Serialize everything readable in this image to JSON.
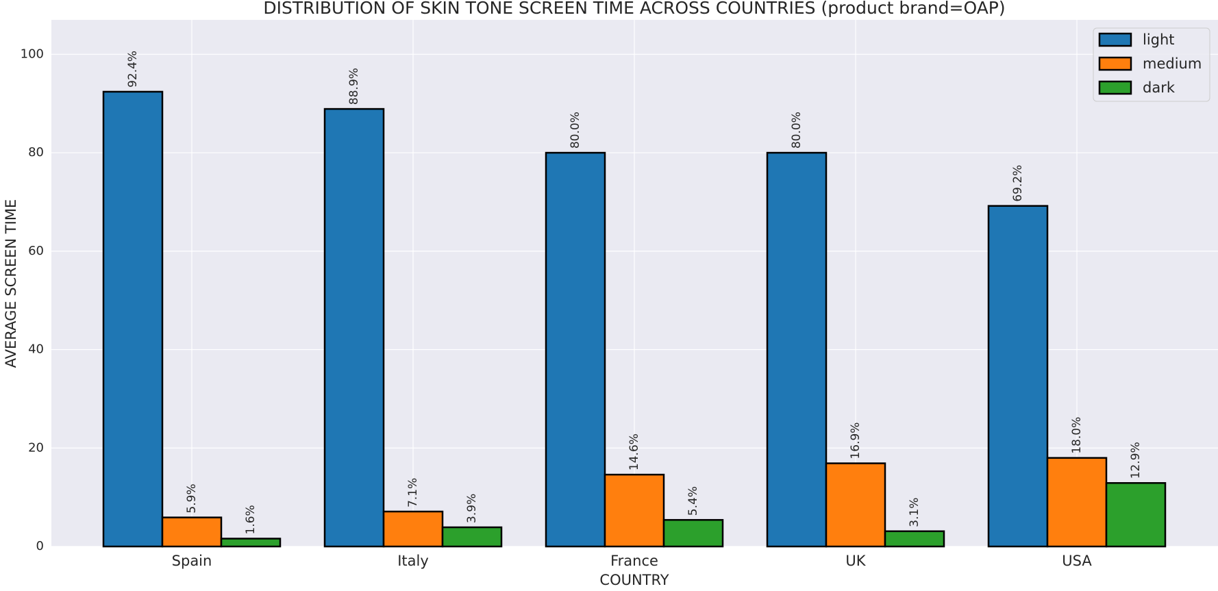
{
  "chart_data": {
    "type": "bar",
    "title": "DISTRIBUTION OF SKIN TONE SCREEN TIME ACROSS COUNTRIES (product brand=OAP)",
    "xlabel": "COUNTRY",
    "ylabel": "AVERAGE SCREEN TIME",
    "categories": [
      "Spain",
      "Italy",
      "France",
      "UK",
      "USA"
    ],
    "ylim": [
      0,
      107
    ],
    "yticks": [
      0,
      20,
      40,
      60,
      80,
      100
    ],
    "grid": true,
    "legend_position": "top-right",
    "colors": {
      "background": "#eaeaf2",
      "grid": "#ffffff",
      "edge": "#000000"
    },
    "series": [
      {
        "name": "light",
        "color": "#1f77b4",
        "values": [
          92.4,
          88.9,
          80.0,
          80.0,
          69.2
        ],
        "labels": [
          "92.4%",
          "88.9%",
          "80.0%",
          "80.0%",
          "69.2%"
        ]
      },
      {
        "name": "medium",
        "color": "#ff7f0e",
        "values": [
          5.9,
          7.1,
          14.6,
          16.9,
          18.0
        ],
        "labels": [
          "5.9%",
          "7.1%",
          "14.6%",
          "16.9%",
          "18.0%"
        ]
      },
      {
        "name": "dark",
        "color": "#2ca02c",
        "values": [
          1.6,
          3.9,
          5.4,
          3.1,
          12.9
        ],
        "labels": [
          "1.6%",
          "3.9%",
          "5.4%",
          "3.1%",
          "12.9%"
        ]
      }
    ]
  }
}
